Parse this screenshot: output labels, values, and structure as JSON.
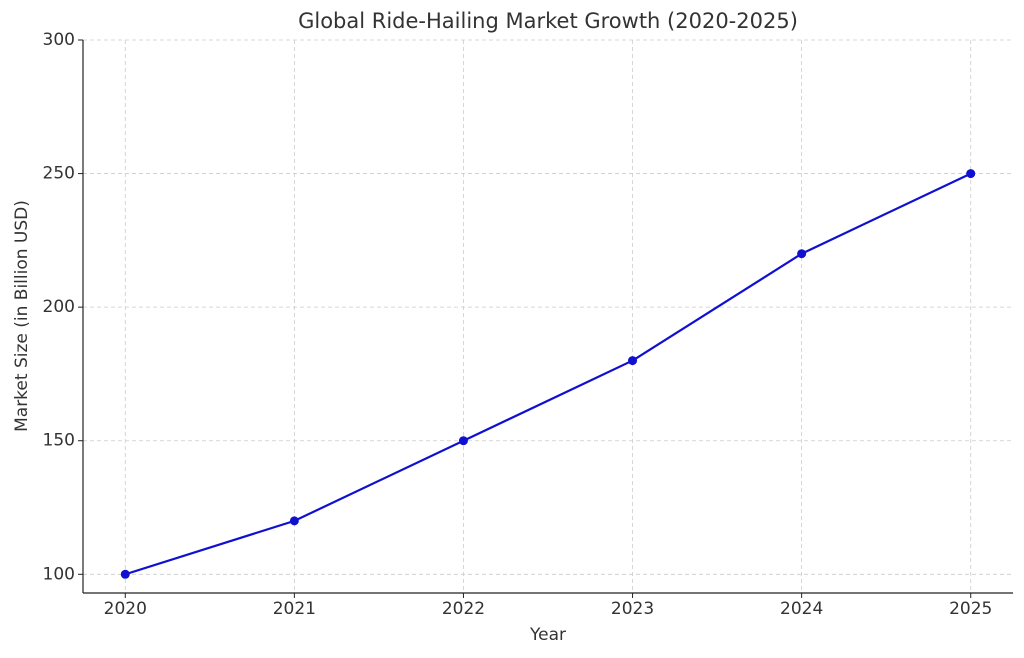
{
  "chart_data": {
    "type": "line",
    "title": "Global Ride-Hailing Market Growth (2020-2025)",
    "x_label": "Year",
    "y_label": "Market Size (in Billion USD)",
    "x": [
      2020,
      2021,
      2022,
      2023,
      2024,
      2025
    ],
    "values": [
      100,
      120,
      150,
      180,
      220,
      250
    ],
    "color": "#1010d0",
    "xlim": [
      2019.75,
      2025.25
    ],
    "xticks": [
      2020,
      2021,
      2022,
      2023,
      2024,
      2025
    ],
    "ylim": [
      93,
      300
    ],
    "yticks": [
      100,
      150,
      200,
      250,
      300
    ],
    "grid": true
  }
}
